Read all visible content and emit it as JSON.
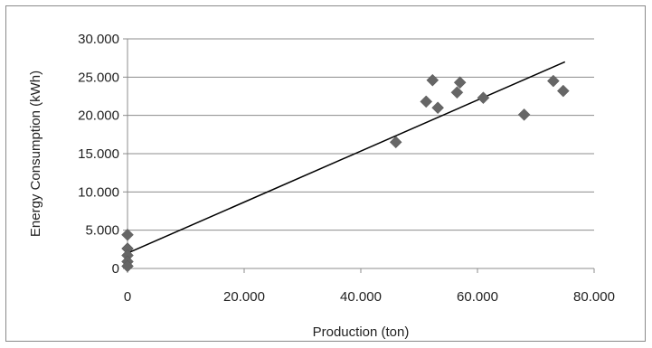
{
  "chart_data": {
    "type": "scatter",
    "title": "",
    "xlabel": "Production (ton)",
    "ylabel": "Energy Consumption (kWh)",
    "xlim": [
      0,
      80000
    ],
    "ylim": [
      0,
      30000
    ],
    "x_ticks": [
      0,
      20000,
      40000,
      60000,
      80000
    ],
    "y_ticks": [
      0,
      5000,
      10000,
      15000,
      20000,
      25000,
      30000
    ],
    "x_tick_labels": [
      "0",
      "20.000",
      "40.000",
      "60.000",
      "80.000"
    ],
    "y_tick_labels": [
      "0",
      "5.000",
      "10.000",
      "15.000",
      "20.000",
      "25.000",
      "30.000"
    ],
    "grid": "horizontal",
    "legend": "none",
    "marker": "diamond",
    "marker_color": "#666666",
    "trendline_color": "#000000",
    "points": [
      {
        "x": 0,
        "y": 4400
      },
      {
        "x": 0,
        "y": 2600
      },
      {
        "x": 0,
        "y": 1700
      },
      {
        "x": 0,
        "y": 900
      },
      {
        "x": 0,
        "y": 300
      },
      {
        "x": 46000,
        "y": 16500
      },
      {
        "x": 51200,
        "y": 21800
      },
      {
        "x": 52300,
        "y": 24600
      },
      {
        "x": 53200,
        "y": 21000
      },
      {
        "x": 56500,
        "y": 23000
      },
      {
        "x": 57000,
        "y": 24300
      },
      {
        "x": 61000,
        "y": 22300
      },
      {
        "x": 68000,
        "y": 20100
      },
      {
        "x": 73000,
        "y": 24500
      },
      {
        "x": 74700,
        "y": 23200
      }
    ],
    "trendline": {
      "x": [
        0,
        75000
      ],
      "y": [
        2000,
        27000
      ]
    }
  }
}
